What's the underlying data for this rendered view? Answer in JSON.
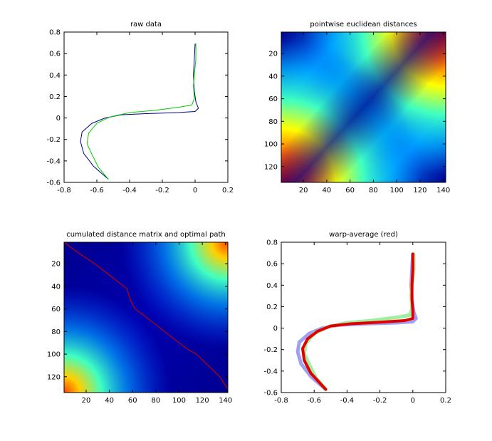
{
  "chart_data": [
    {
      "type": "line",
      "title": "raw data",
      "xlabel": "",
      "ylabel": "",
      "xlim": [
        -0.8,
        0.2
      ],
      "ylim": [
        -0.6,
        0.8
      ],
      "xticks": [
        "-0.8",
        "-0.6",
        "-0.4",
        "-0.2",
        "0",
        "0.2"
      ],
      "yticks": [
        "0.8",
        "0.6",
        "0.4",
        "0.2",
        "0",
        "-0.2",
        "-0.4",
        "-0.6"
      ],
      "grid": false,
      "series": [
        {
          "color": "#000080",
          "points": [
            [
              0.0,
              0.69
            ],
            [
              -0.005,
              0.55
            ],
            [
              -0.01,
              0.4
            ],
            [
              -0.005,
              0.25
            ],
            [
              0.005,
              0.15
            ],
            [
              0.02,
              0.09
            ],
            [
              0.0,
              0.06
            ],
            [
              -0.1,
              0.05
            ],
            [
              -0.3,
              0.04
            ],
            [
              -0.45,
              0.03
            ],
            [
              -0.55,
              0.0
            ],
            [
              -0.63,
              -0.05
            ],
            [
              -0.69,
              -0.13
            ],
            [
              -0.7,
              -0.22
            ],
            [
              -0.68,
              -0.33
            ],
            [
              -0.62,
              -0.45
            ],
            [
              -0.53,
              -0.57
            ]
          ]
        },
        {
          "color": "#00cc00",
          "points": [
            [
              0.005,
              0.69
            ],
            [
              0.005,
              0.55
            ],
            [
              -0.005,
              0.4
            ],
            [
              -0.01,
              0.3
            ],
            [
              -0.005,
              0.18
            ],
            [
              -0.02,
              0.12
            ],
            [
              -0.1,
              0.1
            ],
            [
              -0.25,
              0.07
            ],
            [
              -0.4,
              0.05
            ],
            [
              -0.52,
              0.01
            ],
            [
              -0.6,
              -0.05
            ],
            [
              -0.65,
              -0.14
            ],
            [
              -0.66,
              -0.24
            ],
            [
              -0.63,
              -0.34
            ],
            [
              -0.59,
              -0.46
            ],
            [
              -0.53,
              -0.57
            ]
          ]
        }
      ]
    },
    {
      "type": "heatmap",
      "title": "pointwise euclidean distances",
      "xlabel": "",
      "ylabel": "",
      "xlim": [
        1,
        142
      ],
      "ylim": [
        1,
        134
      ],
      "xticks": [
        "20",
        "40",
        "60",
        "80",
        "100",
        "120",
        "140"
      ],
      "yticks": [
        "20",
        "40",
        "60",
        "80",
        "100",
        "120"
      ],
      "colormap": "jet"
    },
    {
      "type": "heatmap",
      "title": "cumulated distance matrix and optimal path",
      "xlabel": "",
      "ylabel": "",
      "xlim": [
        1,
        142
      ],
      "ylim": [
        1,
        134
      ],
      "xticks": [
        "20",
        "40",
        "60",
        "80",
        "100",
        "120",
        "140"
      ],
      "yticks": [
        "20",
        "40",
        "60",
        "80",
        "100",
        "120"
      ],
      "colormap": "jet",
      "path_color": "#c00000",
      "path": [
        [
          1,
          1
        ],
        [
          10,
          8
        ],
        [
          20,
          15
        ],
        [
          30,
          22
        ],
        [
          40,
          30
        ],
        [
          50,
          38
        ],
        [
          55,
          42
        ],
        [
          58,
          52
        ],
        [
          62,
          60
        ],
        [
          70,
          66
        ],
        [
          80,
          74
        ],
        [
          90,
          82
        ],
        [
          100,
          90
        ],
        [
          108,
          96
        ],
        [
          115,
          100
        ],
        [
          125,
          110
        ],
        [
          135,
          120
        ],
        [
          142,
          131
        ]
      ]
    },
    {
      "type": "line",
      "title": "warp-average (red)",
      "xlabel": "",
      "ylabel": "",
      "xlim": [
        -0.8,
        0.2
      ],
      "ylim": [
        -0.6,
        0.8
      ],
      "xticks": [
        "-0.8",
        "-0.6",
        "-0.4",
        "-0.2",
        "0",
        "0.2"
      ],
      "yticks": [
        "0.8",
        "0.6",
        "0.4",
        "0.2",
        "0",
        "-0.2",
        "-0.4",
        "-0.6"
      ],
      "grid": false,
      "series": [
        {
          "color": "#a0a0f0",
          "points": [
            [
              0.0,
              0.69
            ],
            [
              -0.005,
              0.55
            ],
            [
              -0.01,
              0.4
            ],
            [
              -0.005,
              0.25
            ],
            [
              0.005,
              0.15
            ],
            [
              0.02,
              0.09
            ],
            [
              0.0,
              0.06
            ],
            [
              -0.1,
              0.05
            ],
            [
              -0.3,
              0.04
            ],
            [
              -0.45,
              0.03
            ],
            [
              -0.55,
              0.0
            ],
            [
              -0.63,
              -0.05
            ],
            [
              -0.69,
              -0.13
            ],
            [
              -0.7,
              -0.22
            ],
            [
              -0.68,
              -0.33
            ],
            [
              -0.62,
              -0.45
            ],
            [
              -0.53,
              -0.57
            ]
          ]
        },
        {
          "color": "#a0eea0",
          "points": [
            [
              0.005,
              0.69
            ],
            [
              0.005,
              0.55
            ],
            [
              -0.005,
              0.4
            ],
            [
              -0.01,
              0.3
            ],
            [
              -0.005,
              0.18
            ],
            [
              -0.02,
              0.12
            ],
            [
              -0.1,
              0.1
            ],
            [
              -0.25,
              0.07
            ],
            [
              -0.4,
              0.05
            ],
            [
              -0.52,
              0.01
            ],
            [
              -0.6,
              -0.05
            ],
            [
              -0.65,
              -0.14
            ],
            [
              -0.66,
              -0.24
            ],
            [
              -0.63,
              -0.34
            ],
            [
              -0.59,
              -0.46
            ],
            [
              -0.53,
              -0.57
            ]
          ]
        },
        {
          "color": "#e00000",
          "points": [
            [
              0.0,
              0.69
            ],
            [
              0.0,
              0.55
            ],
            [
              -0.005,
              0.4
            ],
            [
              -0.005,
              0.27
            ],
            [
              0.0,
              0.16
            ],
            [
              0.0,
              0.09
            ],
            [
              -0.05,
              0.07
            ],
            [
              -0.2,
              0.055
            ],
            [
              -0.38,
              0.04
            ],
            [
              -0.5,
              0.02
            ],
            [
              -0.58,
              -0.03
            ],
            [
              -0.64,
              -0.1
            ],
            [
              -0.67,
              -0.19
            ],
            [
              -0.66,
              -0.3
            ],
            [
              -0.62,
              -0.42
            ],
            [
              -0.53,
              -0.57
            ]
          ]
        }
      ]
    }
  ]
}
